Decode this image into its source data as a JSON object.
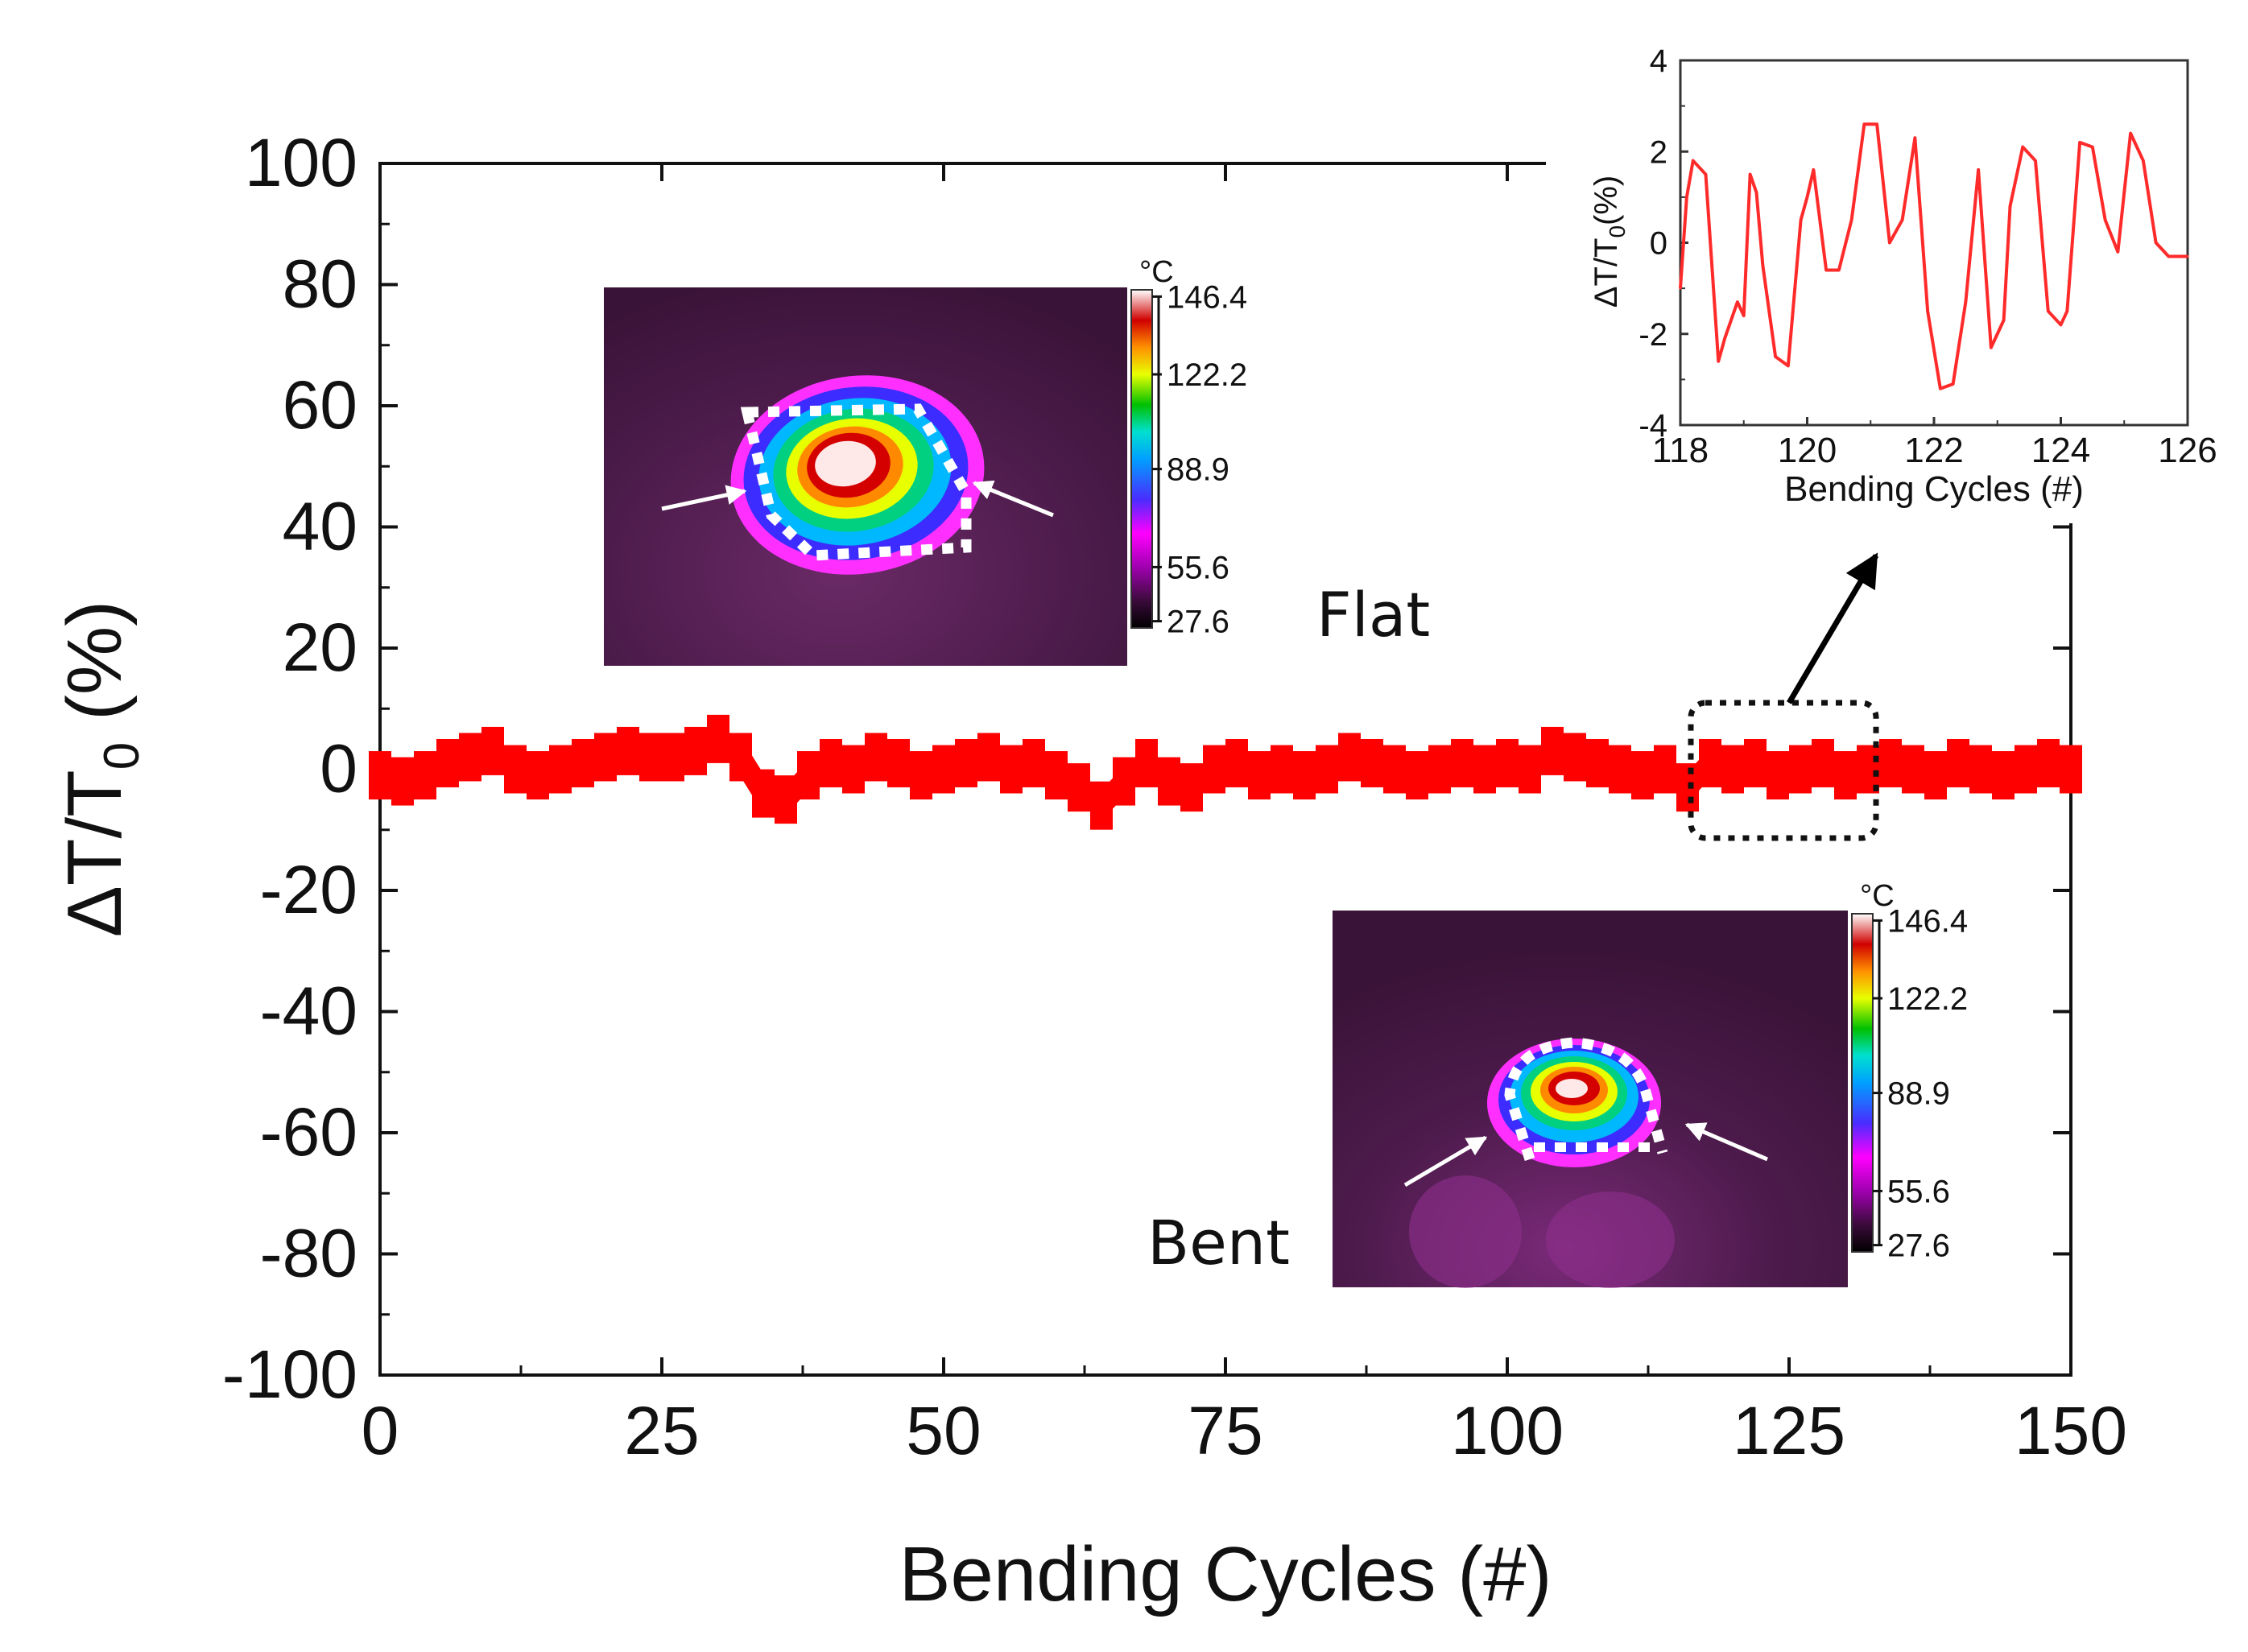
{
  "chart_data": [
    {
      "id": "main",
      "type": "scatter",
      "title": "",
      "xlabel": "Bending Cycles (#)",
      "ylabel_parts": {
        "main": "ΔT/T",
        "sub": "0",
        "suffix": " (%)"
      },
      "xlim": [
        0,
        150
      ],
      "ylim": [
        -100,
        100
      ],
      "xticks": [
        0,
        25,
        50,
        75,
        100,
        125,
        150
      ],
      "yticks": [
        100,
        80,
        60,
        40,
        20,
        0,
        -20,
        -40,
        -60,
        -80,
        -100
      ],
      "series": [
        {
          "name": "ΔT/T0",
          "color": "#ff0000",
          "x": [
            0,
            2,
            4,
            6,
            8,
            10,
            12,
            14,
            16,
            18,
            20,
            22,
            24,
            26,
            28,
            30,
            32,
            34,
            36,
            38,
            40,
            42,
            44,
            46,
            48,
            50,
            52,
            54,
            56,
            58,
            60,
            62,
            64,
            66,
            68,
            70,
            72,
            74,
            76,
            78,
            80,
            82,
            84,
            86,
            88,
            90,
            92,
            94,
            96,
            98,
            100,
            102,
            104,
            106,
            108,
            110,
            112,
            114,
            116,
            118,
            120,
            122,
            124,
            126,
            128,
            130,
            132,
            134,
            136,
            138,
            140,
            142,
            144,
            146,
            148,
            150
          ],
          "y": [
            -1,
            -2,
            -1,
            1,
            2,
            3,
            0,
            -1,
            0,
            1,
            2,
            3,
            2,
            2,
            3,
            5,
            2,
            -4,
            -5,
            -1,
            1,
            0,
            2,
            1,
            -1,
            0,
            1,
            2,
            0,
            1,
            -1,
            -3,
            -6,
            -2,
            1,
            -2,
            -3,
            0,
            1,
            -1,
            0,
            -1,
            0,
            2,
            1,
            0,
            -1,
            0,
            1,
            0,
            1,
            0,
            3,
            2,
            1,
            0,
            -1,
            0,
            -3,
            1,
            0,
            1,
            -1,
            0,
            1,
            -1,
            0,
            1,
            0,
            -1,
            1,
            0,
            -1,
            0,
            1,
            0
          ]
        }
      ]
    },
    {
      "id": "inset",
      "type": "line",
      "xlabel": "Bending Cycles (#)",
      "ylabel_parts": {
        "main": "ΔT/T",
        "sub": "0",
        "suffix": "(%)"
      },
      "xlim": [
        118,
        126
      ],
      "ylim": [
        -4,
        4
      ],
      "xticks": [
        118,
        120,
        122,
        124,
        126
      ],
      "yticks": [
        4,
        2,
        0,
        -2,
        -4
      ],
      "series": [
        {
          "name": "ΔT/T0",
          "color": "#ff2a2a",
          "x": [
            118,
            118.1,
            118.2,
            118.4,
            118.6,
            118.7,
            118.9,
            119,
            119.1,
            119.2,
            119.3,
            119.5,
            119.7,
            119.9,
            120,
            120.1,
            120.3,
            120.5,
            120.7,
            120.9,
            121.1,
            121.3,
            121.5,
            121.7,
            121.9,
            122.1,
            122.3,
            122.5,
            122.7,
            122.9,
            123.1,
            123.2,
            123.4,
            123.6,
            123.8,
            124,
            124.1,
            124.3,
            124.5,
            124.7,
            124.9,
            125.1,
            125.3,
            125.5,
            125.7,
            125.9,
            126
          ],
          "y": [
            -1,
            1,
            1.8,
            1.5,
            -2.6,
            -2.1,
            -1.3,
            -1.6,
            1.5,
            1.1,
            -0.5,
            -2.5,
            -2.7,
            0.5,
            1.0,
            1.6,
            -0.6,
            -0.6,
            0.5,
            2.6,
            2.6,
            0,
            0.5,
            2.3,
            -1.5,
            -3.2,
            -3.1,
            -1.3,
            1.6,
            -2.3,
            -1.7,
            0.8,
            2.1,
            1.8,
            -1.5,
            -1.8,
            -1.5,
            2.2,
            2.1,
            0.5,
            -0.2,
            2.4,
            1.8,
            0,
            -0.3,
            -0.3,
            -0.3
          ]
        }
      ]
    }
  ],
  "annotations": {
    "flat_label": "Flat",
    "bent_label": "Bent",
    "colorbar": {
      "unit": "°C",
      "ticks": [
        "146.4",
        "122.2",
        "88.9",
        "55.6",
        "27.6"
      ]
    }
  },
  "colors": {
    "series": "#ff0000",
    "inset_series": "#ff2a2a",
    "thermal_background": "#4a1a48",
    "axis": "#111111"
  }
}
